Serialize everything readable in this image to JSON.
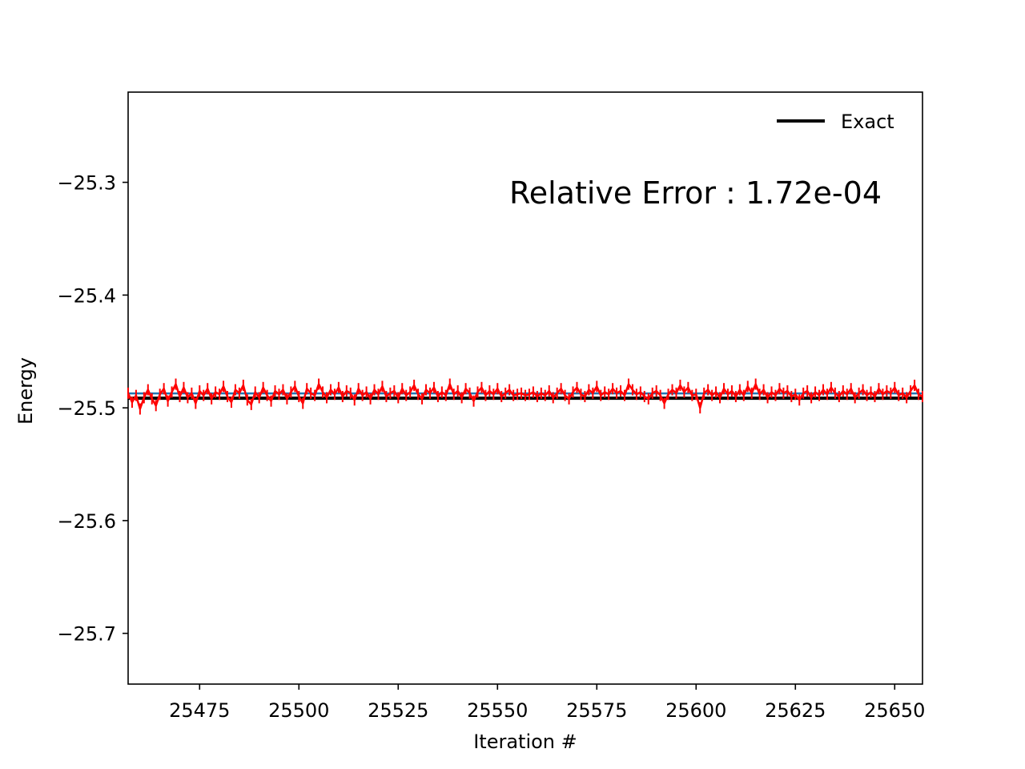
{
  "chart_data": {
    "type": "line",
    "title": "",
    "xlabel": "Iteration #",
    "ylabel": "Energy",
    "xlim": [
      25457,
      25657
    ],
    "ylim": [
      -25.745,
      -25.22
    ],
    "x_ticks": [
      25475,
      25500,
      25525,
      25550,
      25575,
      25600,
      25625,
      25650
    ],
    "y_ticks": [
      -25.3,
      -25.4,
      -25.5,
      -25.6,
      -25.7
    ],
    "y_tick_labels": [
      "−25.3",
      "−25.4",
      "−25.5",
      "−25.6",
      "−25.7"
    ],
    "grid": false,
    "legend": {
      "placement": "top-right",
      "entries": [
        {
          "label": "Exact",
          "color": "#000000"
        }
      ]
    },
    "annotation": {
      "text": "Relative Error : 1.72e-04",
      "color": "#008000"
    },
    "exact_value": -25.4915,
    "running_mean_value": -25.4872,
    "series": [
      {
        "color": "#ff0000",
        "x": [
          25457,
          25458,
          25459,
          25460,
          25461,
          25462,
          25463,
          25464,
          25465,
          25466,
          25467,
          25468,
          25469,
          25470,
          25471,
          25472,
          25473,
          25474,
          25475,
          25476,
          25477,
          25478,
          25479,
          25480,
          25481,
          25482,
          25483,
          25484,
          25485,
          25486,
          25487,
          25488,
          25489,
          25490,
          25491,
          25492,
          25493,
          25494,
          25495,
          25496,
          25497,
          25498,
          25499,
          25500,
          25501,
          25502,
          25503,
          25504,
          25505,
          25506,
          25507,
          25508,
          25509,
          25510,
          25511,
          25512,
          25513,
          25514,
          25515,
          25516,
          25517,
          25518,
          25519,
          25520,
          25521,
          25522,
          25523,
          25524,
          25525,
          25526,
          25527,
          25528,
          25529,
          25530,
          25531,
          25532,
          25533,
          25534,
          25535,
          25536,
          25537,
          25538,
          25539,
          25540,
          25541,
          25542,
          25543,
          25544,
          25545,
          25546,
          25547,
          25548,
          25549,
          25550,
          25551,
          25552,
          25553,
          25554,
          25555,
          25556,
          25557,
          25558,
          25559,
          25560,
          25561,
          25562,
          25563,
          25564,
          25565,
          25566,
          25567,
          25568,
          25569,
          25570,
          25571,
          25572,
          25573,
          25574,
          25575,
          25576,
          25577,
          25578,
          25579,
          25580,
          25581,
          25582,
          25583,
          25584,
          25585,
          25586,
          25587,
          25588,
          25589,
          25590,
          25591,
          25592,
          25593,
          25594,
          25595,
          25596,
          25597,
          25598,
          25599,
          25600,
          25601,
          25602,
          25603,
          25604,
          25605,
          25606,
          25607,
          25608,
          25609,
          25610,
          25611,
          25612,
          25613,
          25614,
          25615,
          25616,
          25617,
          25618,
          25619,
          25620,
          25621,
          25622,
          25623,
          25624,
          25625,
          25626,
          25627,
          25628,
          25629,
          25630,
          25631,
          25632,
          25633,
          25634,
          25635,
          25636,
          25637,
          25638,
          25639,
          25640,
          25641,
          25642,
          25643,
          25644,
          25645,
          25646,
          25647,
          25648,
          25649,
          25650,
          25651,
          25652,
          25653,
          25654,
          25655,
          25656,
          25657
        ],
        "y": [
          -25.487,
          -25.495,
          -25.489,
          -25.501,
          -25.491,
          -25.484,
          -25.492,
          -25.498,
          -25.488,
          -25.483,
          -25.494,
          -25.486,
          -25.479,
          -25.49,
          -25.482,
          -25.491,
          -25.487,
          -25.496,
          -25.485,
          -25.489,
          -25.483,
          -25.492,
          -25.486,
          -25.488,
          -25.481,
          -25.49,
          -25.495,
          -25.484,
          -25.487,
          -25.48,
          -25.493,
          -25.497,
          -25.486,
          -25.491,
          -25.482,
          -25.489,
          -25.494,
          -25.485,
          -25.488,
          -25.484,
          -25.492,
          -25.486,
          -25.481,
          -25.49,
          -25.496,
          -25.483,
          -25.487,
          -25.489,
          -25.479,
          -25.486,
          -25.491,
          -25.484,
          -25.488,
          -25.482,
          -25.49,
          -25.485,
          -25.487,
          -25.493,
          -25.483,
          -25.489,
          -25.486,
          -25.492,
          -25.484,
          -25.488,
          -25.481,
          -25.49,
          -25.487,
          -25.485,
          -25.491,
          -25.483,
          -25.489,
          -25.486,
          -25.48,
          -25.488,
          -25.492,
          -25.484,
          -25.487,
          -25.482,
          -25.49,
          -25.486,
          -25.489,
          -25.479,
          -25.488,
          -25.485,
          -25.491,
          -25.483,
          -25.487,
          -25.494,
          -25.486,
          -25.482,
          -25.489,
          -25.485,
          -25.488,
          -25.483,
          -25.49,
          -25.487,
          -25.484,
          -25.489,
          -25.488,
          -25.487,
          -25.489,
          -25.488,
          -25.486,
          -25.49,
          -25.487,
          -25.489,
          -25.485,
          -25.491,
          -25.487,
          -25.483,
          -25.489,
          -25.492,
          -25.486,
          -25.482,
          -25.488,
          -25.49,
          -25.484,
          -25.487,
          -25.481,
          -25.489,
          -25.486,
          -25.488,
          -25.483,
          -25.487,
          -25.485,
          -25.489,
          -25.479,
          -25.484,
          -25.488,
          -25.486,
          -25.49,
          -25.492,
          -25.487,
          -25.485,
          -25.489,
          -25.496,
          -25.488,
          -25.484,
          -25.487,
          -25.48,
          -25.486,
          -25.482,
          -25.489,
          -25.488,
          -25.5,
          -25.487,
          -25.484,
          -25.489,
          -25.486,
          -25.491,
          -25.483,
          -25.488,
          -25.485,
          -25.49,
          -25.484,
          -25.489,
          -25.481,
          -25.487,
          -25.479,
          -25.488,
          -25.484,
          -25.491,
          -25.486,
          -25.489,
          -25.483,
          -25.487,
          -25.485,
          -25.49,
          -25.488,
          -25.493,
          -25.487,
          -25.485,
          -25.491,
          -25.486,
          -25.489,
          -25.484,
          -25.488,
          -25.482,
          -25.487,
          -25.49,
          -25.485,
          -25.488,
          -25.483,
          -25.491,
          -25.487,
          -25.484,
          -25.489,
          -25.486,
          -25.49,
          -25.483,
          -25.488,
          -25.485,
          -25.487,
          -25.482,
          -25.489,
          -25.487,
          -25.491,
          -25.485,
          -25.48,
          -25.488,
          -25.49
        ]
      }
    ]
  }
}
